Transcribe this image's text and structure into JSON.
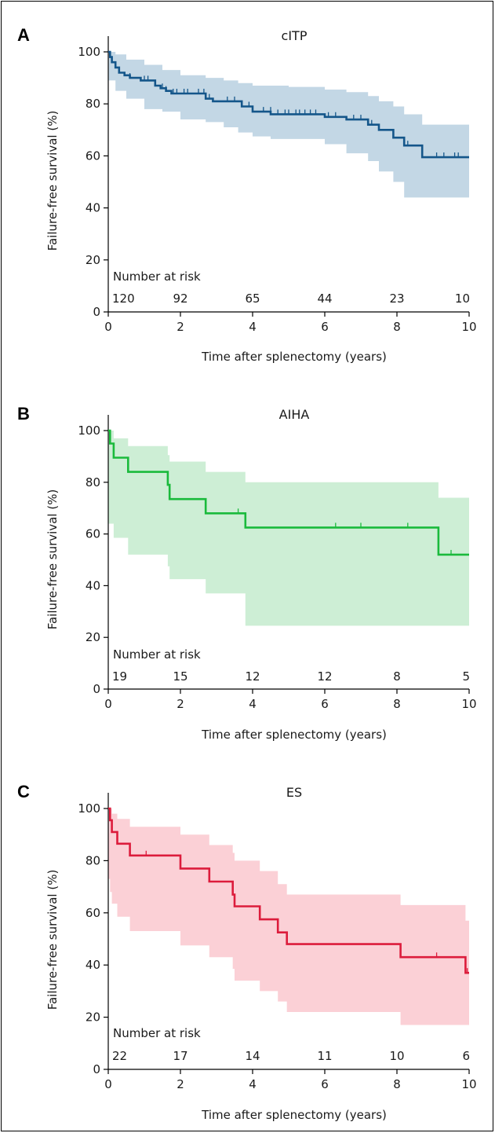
{
  "chart_data": [
    {
      "type": "line",
      "panel_letter": "A",
      "title": "cITP",
      "xlabel": "Time after splenectomy (years)",
      "ylabel": "Failure-free survival (%)",
      "xlim": [
        0,
        10
      ],
      "ylim": [
        0,
        100
      ],
      "x_ticks": [
        0,
        2,
        4,
        6,
        8,
        10
      ],
      "y_ticks": [
        0,
        20,
        40,
        60,
        80,
        100
      ],
      "color": "#14568a",
      "band_color": "#c3d7e5",
      "risk_title": "Number at risk",
      "risk": [
        "120",
        "92",
        "65",
        "44",
        "23",
        "10"
      ],
      "survival": [
        [
          0,
          100
        ],
        [
          0.05,
          98
        ],
        [
          0.1,
          96
        ],
        [
          0.2,
          94
        ],
        [
          0.3,
          92
        ],
        [
          0.45,
          91
        ],
        [
          0.6,
          90
        ],
        [
          0.9,
          89
        ],
        [
          1.3,
          87
        ],
        [
          1.45,
          86
        ],
        [
          1.6,
          85
        ],
        [
          1.75,
          84
        ],
        [
          2.7,
          82
        ],
        [
          2.9,
          81
        ],
        [
          3.7,
          79
        ],
        [
          4.0,
          77
        ],
        [
          4.5,
          76
        ],
        [
          6.0,
          75
        ],
        [
          6.6,
          74
        ],
        [
          7.2,
          72
        ],
        [
          7.5,
          70
        ],
        [
          7.9,
          67
        ],
        [
          8.2,
          64
        ],
        [
          8.7,
          59.5
        ],
        [
          10,
          59.5
        ]
      ],
      "upper": [
        [
          0,
          100
        ],
        [
          0.2,
          99
        ],
        [
          0.5,
          97
        ],
        [
          1.0,
          95
        ],
        [
          1.5,
          93
        ],
        [
          2.0,
          91
        ],
        [
          2.7,
          90
        ],
        [
          3.2,
          89
        ],
        [
          3.6,
          88
        ],
        [
          4.0,
          87
        ],
        [
          5.0,
          86.5
        ],
        [
          6.0,
          85.5
        ],
        [
          6.6,
          84.5
        ],
        [
          7.2,
          83
        ],
        [
          7.5,
          81
        ],
        [
          7.9,
          79
        ],
        [
          8.2,
          76
        ],
        [
          8.7,
          72
        ],
        [
          10,
          72
        ]
      ],
      "lower": [
        [
          0,
          98
        ],
        [
          0.2,
          89
        ],
        [
          0.5,
          85
        ],
        [
          1.0,
          82
        ],
        [
          1.5,
          78
        ],
        [
          2.0,
          77
        ],
        [
          2.7,
          74
        ],
        [
          3.2,
          73
        ],
        [
          3.6,
          71
        ],
        [
          4.0,
          69
        ],
        [
          4.5,
          67.5
        ],
        [
          6.0,
          66.5
        ],
        [
          6.6,
          64.5
        ],
        [
          7.2,
          61
        ],
        [
          7.5,
          58
        ],
        [
          7.9,
          54
        ],
        [
          8.2,
          50
        ],
        [
          8.7,
          44
        ],
        [
          10,
          44
        ]
      ],
      "censor": [
        [
          0.6,
          90
        ],
        [
          1.0,
          89
        ],
        [
          1.1,
          89
        ],
        [
          1.5,
          86
        ],
        [
          1.6,
          85
        ],
        [
          1.8,
          84
        ],
        [
          1.9,
          84
        ],
        [
          2.1,
          84
        ],
        [
          2.2,
          84
        ],
        [
          2.5,
          84
        ],
        [
          2.65,
          84
        ],
        [
          2.8,
          82
        ],
        [
          3.3,
          81
        ],
        [
          3.5,
          81
        ],
        [
          3.9,
          79
        ],
        [
          4.3,
          77
        ],
        [
          4.5,
          77
        ],
        [
          4.7,
          76
        ],
        [
          4.9,
          76
        ],
        [
          5.0,
          76
        ],
        [
          5.2,
          76
        ],
        [
          5.3,
          76
        ],
        [
          5.45,
          76
        ],
        [
          5.6,
          76
        ],
        [
          5.75,
          76
        ],
        [
          6.1,
          75
        ],
        [
          6.3,
          75
        ],
        [
          6.8,
          74
        ],
        [
          7.0,
          74
        ],
        [
          7.3,
          72
        ],
        [
          8.3,
          64
        ],
        [
          9.1,
          59.5
        ],
        [
          9.3,
          59.5
        ],
        [
          9.6,
          59.5
        ],
        [
          9.7,
          59.5
        ]
      ]
    },
    {
      "type": "line",
      "panel_letter": "B",
      "title": "AIHA",
      "xlabel": "Time after splenectomy (years)",
      "ylabel": "Failure-free survival (%)",
      "xlim": [
        0,
        10
      ],
      "ylim": [
        0,
        100
      ],
      "x_ticks": [
        0,
        2,
        4,
        6,
        8,
        10
      ],
      "y_ticks": [
        0,
        20,
        40,
        60,
        80,
        100
      ],
      "color": "#1aba3c",
      "band_color": "#cdeed5",
      "risk_title": "Number at risk",
      "risk": [
        "19",
        "15",
        "12",
        "12",
        "8",
        "5"
      ],
      "survival": [
        [
          0,
          100
        ],
        [
          0.05,
          95
        ],
        [
          0.15,
          89.5
        ],
        [
          0.55,
          84
        ],
        [
          1.65,
          79
        ],
        [
          1.7,
          73.5
        ],
        [
          2.7,
          68
        ],
        [
          3.8,
          62.5
        ],
        [
          9.15,
          52
        ],
        [
          10,
          52
        ]
      ],
      "upper": [
        [
          0,
          100
        ],
        [
          0.05,
          100
        ],
        [
          0.15,
          97
        ],
        [
          0.55,
          94
        ],
        [
          1.65,
          90.5
        ],
        [
          1.7,
          88
        ],
        [
          2.7,
          84
        ],
        [
          3.8,
          80
        ],
        [
          9.15,
          74
        ],
        [
          10,
          74
        ]
      ],
      "lower": [
        [
          0,
          72
        ],
        [
          0.15,
          64
        ],
        [
          0.55,
          58.5
        ],
        [
          1.65,
          52
        ],
        [
          1.7,
          47.5
        ],
        [
          2.7,
          42.5
        ],
        [
          3.8,
          37
        ],
        [
          9.15,
          24.5
        ],
        [
          10,
          24.5
        ]
      ],
      "censor": [
        [
          1.65,
          79
        ],
        [
          3.6,
          68
        ],
        [
          6.3,
          62.5
        ],
        [
          7.0,
          62.5
        ],
        [
          8.3,
          62.5
        ],
        [
          9.5,
          52
        ]
      ]
    },
    {
      "type": "line",
      "panel_letter": "C",
      "title": "ES",
      "xlabel": "Time after splenectomy (years)",
      "ylabel": "Failure-free survival (%)",
      "xlim": [
        0,
        10
      ],
      "ylim": [
        0,
        100
      ],
      "x_ticks": [
        0,
        2,
        4,
        6,
        8,
        10
      ],
      "y_ticks": [
        0,
        20,
        40,
        60,
        80,
        100
      ],
      "color": "#dc1c3c",
      "band_color": "#fbd0d6",
      "risk_title": "Number at risk",
      "risk": [
        "22",
        "17",
        "14",
        "11",
        "10",
        "6"
      ],
      "survival": [
        [
          0,
          100
        ],
        [
          0.05,
          95.5
        ],
        [
          0.1,
          91
        ],
        [
          0.25,
          86.5
        ],
        [
          0.6,
          82
        ],
        [
          2.0,
          77
        ],
        [
          2.8,
          72
        ],
        [
          3.45,
          67
        ],
        [
          3.5,
          62.5
        ],
        [
          4.2,
          57.5
        ],
        [
          4.7,
          52.5
        ],
        [
          4.95,
          48
        ],
        [
          8.1,
          43
        ],
        [
          9.9,
          37
        ],
        [
          10,
          37
        ]
      ],
      "upper": [
        [
          0,
          100
        ],
        [
          0.1,
          98
        ],
        [
          0.25,
          96
        ],
        [
          0.6,
          93
        ],
        [
          2.0,
          90
        ],
        [
          2.8,
          86
        ],
        [
          3.45,
          83
        ],
        [
          3.5,
          80
        ],
        [
          4.2,
          76
        ],
        [
          4.7,
          71
        ],
        [
          4.95,
          67
        ],
        [
          8.1,
          63
        ],
        [
          9.9,
          57
        ],
        [
          10,
          57
        ]
      ],
      "lower": [
        [
          0,
          83
        ],
        [
          0.05,
          73
        ],
        [
          0.1,
          68
        ],
        [
          0.25,
          63.5
        ],
        [
          0.6,
          58.5
        ],
        [
          2.0,
          53
        ],
        [
          2.8,
          47.5
        ],
        [
          3.45,
          43
        ],
        [
          3.5,
          38.5
        ],
        [
          4.2,
          34
        ],
        [
          4.7,
          30
        ],
        [
          4.95,
          26
        ],
        [
          8.1,
          22
        ],
        [
          9.9,
          17
        ],
        [
          10,
          17
        ]
      ],
      "censor": [
        [
          1.05,
          82
        ],
        [
          3.45,
          67
        ],
        [
          9.1,
          43
        ],
        [
          9.95,
          37
        ]
      ]
    }
  ]
}
